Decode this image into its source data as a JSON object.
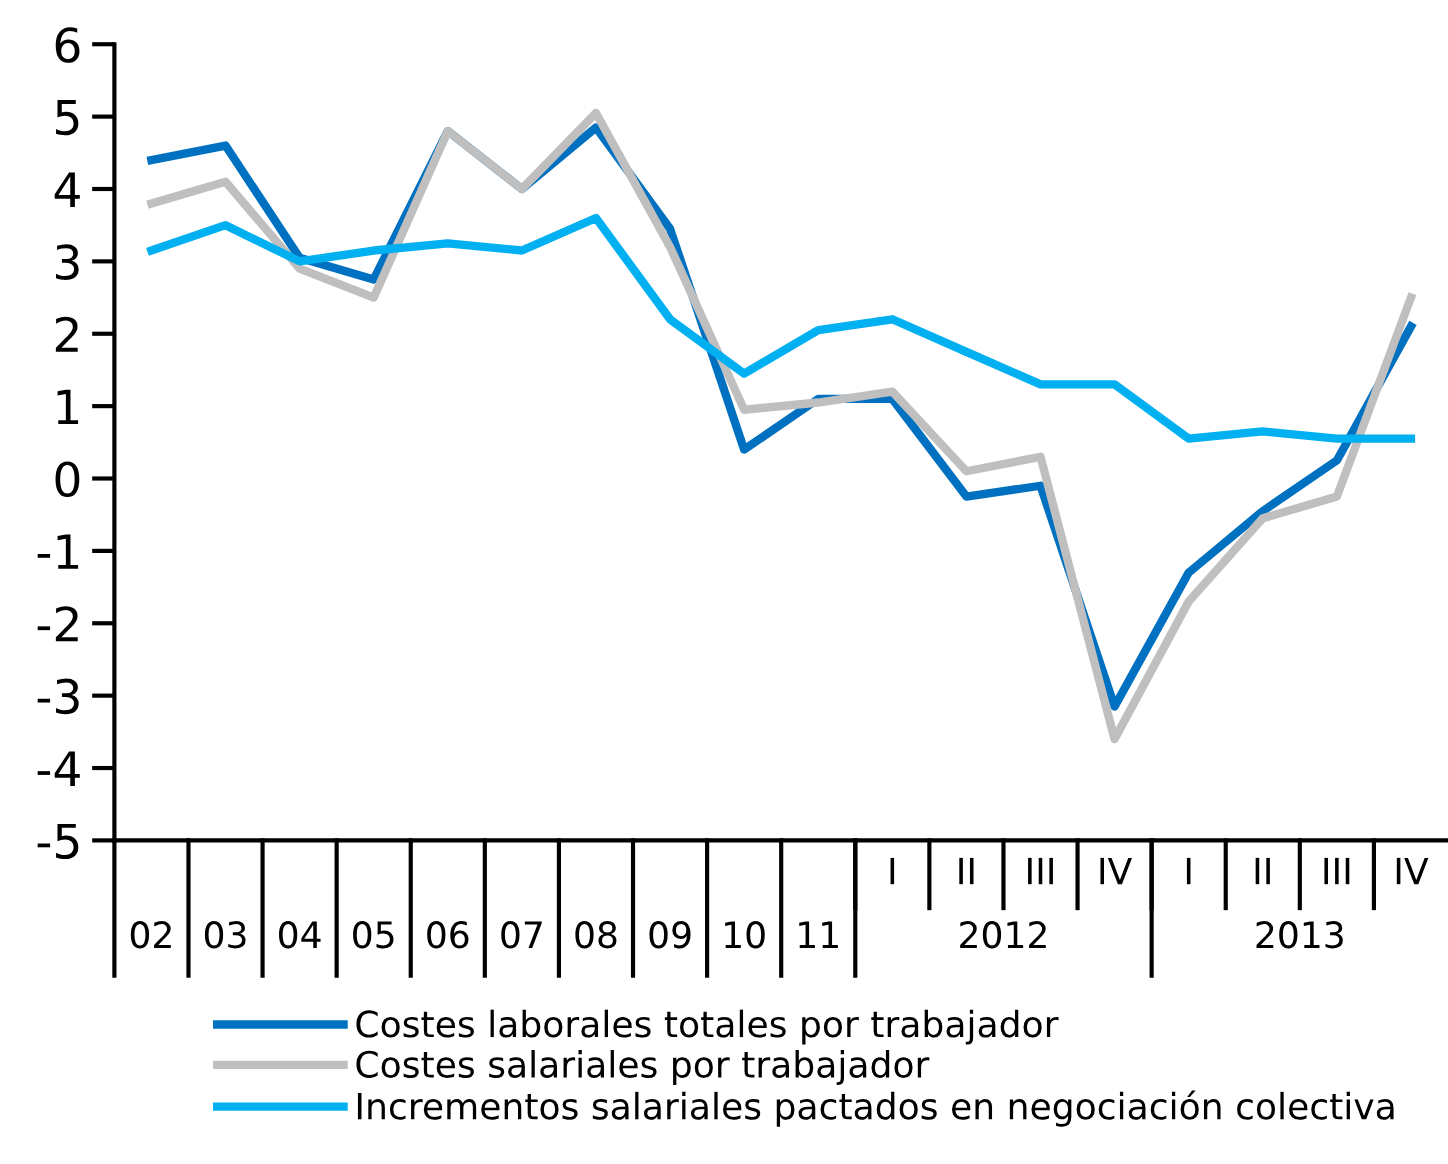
{
  "chart_data": {
    "type": "line",
    "categories": [
      "02",
      "03",
      "04",
      "05",
      "06",
      "07",
      "08",
      "09",
      "10",
      "11",
      "I",
      "II",
      "III",
      "IV",
      "I",
      "II",
      "III",
      "IV"
    ],
    "series": [
      {
        "name": "Costes laborales totales por trabajador",
        "color": "#0070c0",
        "values": [
          4.4,
          4.6,
          3.05,
          2.75,
          4.8,
          4.0,
          4.85,
          3.45,
          0.4,
          1.1,
          1.1,
          -0.25,
          -0.1,
          -3.15,
          -1.3,
          -0.45,
          0.25,
          2.1
        ]
      },
      {
        "name": "Costes salariales por trabajador",
        "color": "#bfbfbf",
        "values": [
          3.8,
          4.1,
          2.9,
          2.5,
          4.8,
          4.0,
          5.05,
          3.2,
          0.95,
          1.05,
          1.2,
          0.1,
          0.3,
          -3.6,
          -1.7,
          -0.55,
          -0.25,
          2.5
        ]
      },
      {
        "name": "Incrementos salariales pactados en negociación colectiva",
        "color": "#00b0f0",
        "values": [
          3.15,
          3.5,
          3.0,
          3.15,
          3.25,
          3.15,
          3.6,
          2.2,
          1.45,
          2.05,
          2.2,
          1.75,
          1.3,
          1.3,
          0.55,
          0.65,
          0.55,
          0.55
        ]
      }
    ],
    "annotations": [
      "2012",
      "2013"
    ],
    "ylim": [
      -5,
      6
    ],
    "yticks": [
      -5,
      -4,
      -3,
      -2,
      -1,
      0,
      1,
      2,
      3,
      4,
      5,
      6
    ],
    "grid": false,
    "legend": "bottom",
    "marker": "none",
    "line_style": "solid"
  }
}
